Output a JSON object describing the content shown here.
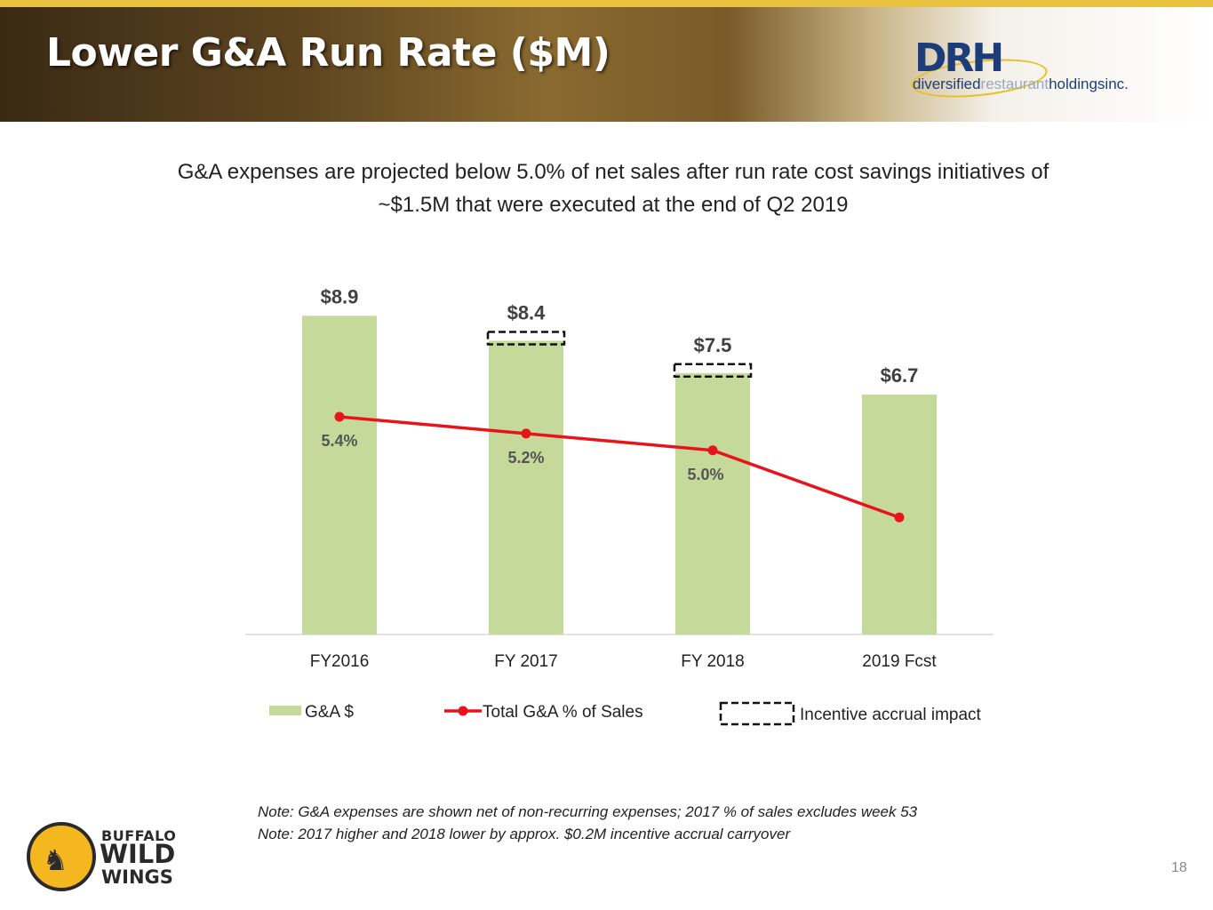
{
  "header": {
    "title": "Lower G&A Run Rate ($M)"
  },
  "logo": {
    "mark": "DRH",
    "line_a": "diversified",
    "line_b": "restaurant",
    "line_c": "holdingsinc."
  },
  "subtitle": {
    "line1": "G&A expenses are projected below 5.0% of net sales after run rate cost savings initiatives of",
    "line2": "~$1.5M that were executed at the end of Q2 2019"
  },
  "colors": {
    "bar": "#c5d99a",
    "line": "#e8141b",
    "dash": "#111111"
  },
  "chart_data": {
    "type": "bar",
    "categories": [
      "FY2016",
      "FY 2017",
      "FY 2018",
      "2019 Fcst"
    ],
    "series": [
      {
        "name": "G&A $",
        "type": "bar",
        "values": [
          8.9,
          8.4,
          7.5,
          6.7
        ],
        "labels": [
          "$8.9",
          "$8.4",
          "$7.5",
          "$6.7"
        ]
      },
      {
        "name": "Total G&A % of Sales",
        "type": "line",
        "values": [
          5.4,
          5.2,
          5.0,
          4.2
        ],
        "labels": [
          "5.4%",
          "5.2%",
          "5.0%",
          ""
        ]
      }
    ],
    "incentive_accrual": {
      "name": "Incentive accrual impact",
      "values": [
        0,
        0.2,
        0.2,
        0
      ]
    },
    "ylim": [
      0,
      9
    ],
    "legend": [
      "G&A $",
      "Total G&A % of Sales",
      "Incentive accrual impact"
    ],
    "legend_position": "bottom"
  },
  "notes": [
    "Note:  G&A expenses are shown net of non-recurring expenses; 2017 % of sales excludes week 53",
    "Note:  2017 higher and 2018 lower by approx. $0.2M incentive accrual carryover"
  ],
  "brand": {
    "line1": "BUFFALO",
    "line2": "WILD",
    "line3": "WINGS",
    "icon": "buffalo-icon"
  },
  "page_number": "18"
}
